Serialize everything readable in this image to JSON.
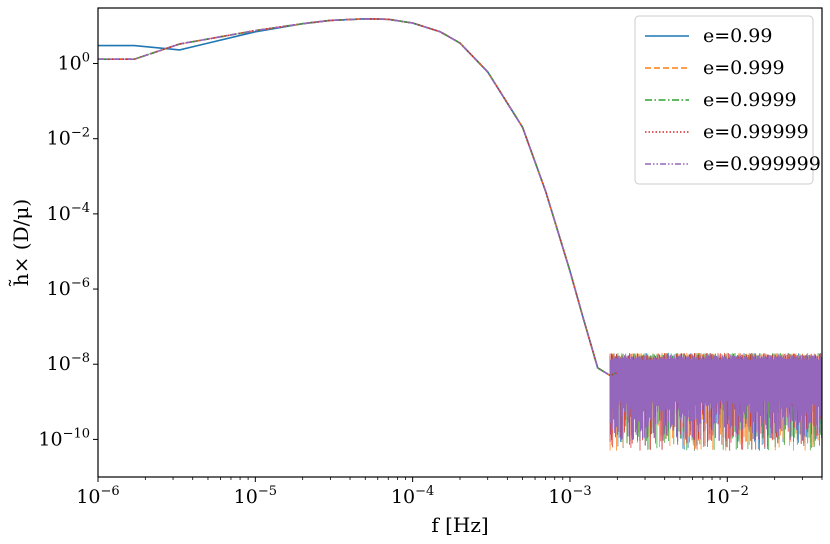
{
  "chart_data": {
    "type": "line",
    "title": "",
    "xlabel": "f [Hz]",
    "ylabel": "h̃× (D/μ)",
    "xscale": "log",
    "yscale": "log",
    "xlim": [
      1e-06,
      0.04
    ],
    "ylim": [
      1e-11,
      30
    ],
    "grid": false,
    "legend_position": "top-right",
    "x_ticks": [
      {
        "value": 1e-06,
        "base": "10",
        "exp": "−6"
      },
      {
        "value": 1e-05,
        "base": "10",
        "exp": "−5"
      },
      {
        "value": 0.0001,
        "base": "10",
        "exp": "−4"
      },
      {
        "value": 0.001,
        "base": "10",
        "exp": "−3"
      },
      {
        "value": 0.01,
        "base": "10",
        "exp": "−2"
      }
    ],
    "y_ticks": [
      {
        "value": 1,
        "base": "10",
        "exp": "0"
      },
      {
        "value": 0.01,
        "base": "10",
        "exp": "−2"
      },
      {
        "value": 0.0001,
        "base": "10",
        "exp": "−4"
      },
      {
        "value": 1e-06,
        "base": "10",
        "exp": "−6"
      },
      {
        "value": 1e-08,
        "base": "10",
        "exp": "−8"
      },
      {
        "value": 1e-10,
        "base": "10",
        "exp": "−10"
      }
    ],
    "noise_floor": {
      "x_start": 0.0018,
      "x_end": 0.04,
      "y_high": 2e-08,
      "y_low": 5e-11
    },
    "series": [
      {
        "name": "e=0.99",
        "color": "#1f77b4",
        "dash": "solid",
        "points": [
          [
            1e-06,
            3
          ],
          [
            1.7e-06,
            3
          ],
          [
            3.3e-06,
            2.3
          ],
          [
            5e-06,
            3.5
          ],
          [
            1e-05,
            7
          ],
          [
            2e-05,
            11.5
          ],
          [
            3e-05,
            14
          ],
          [
            5e-05,
            15.5
          ],
          [
            7e-05,
            15
          ],
          [
            0.0001,
            12
          ],
          [
            0.00015,
            7
          ],
          [
            0.0002,
            3.5
          ],
          [
            0.0003,
            0.6
          ],
          [
            0.0005,
            0.02
          ],
          [
            0.0007,
            0.0004
          ],
          [
            0.001,
            3e-06
          ],
          [
            0.0012,
            2e-07
          ],
          [
            0.0015,
            8e-09
          ],
          [
            0.0018,
            5e-09
          ],
          [
            0.002,
            6e-09
          ]
        ]
      },
      {
        "name": "e=0.999",
        "color": "#ff7f0e",
        "dash": "dashed",
        "points": [
          [
            1e-06,
            1.3
          ],
          [
            1.7e-06,
            1.3
          ],
          [
            3.3e-06,
            3.3
          ],
          [
            5e-06,
            4.5
          ],
          [
            1e-05,
            7.5
          ],
          [
            2e-05,
            11.5
          ],
          [
            3e-05,
            14
          ],
          [
            5e-05,
            15.5
          ],
          [
            7e-05,
            15
          ],
          [
            0.0001,
            12
          ],
          [
            0.00015,
            7
          ],
          [
            0.0002,
            3.5
          ],
          [
            0.0003,
            0.6
          ],
          [
            0.0005,
            0.02
          ],
          [
            0.0007,
            0.0004
          ],
          [
            0.001,
            3e-06
          ],
          [
            0.0012,
            2e-07
          ],
          [
            0.0015,
            8e-09
          ],
          [
            0.0018,
            5e-09
          ],
          [
            0.002,
            6e-09
          ]
        ]
      },
      {
        "name": "e=0.9999",
        "color": "#2ca02c",
        "dash": "dashdot",
        "points": [
          [
            1e-06,
            1.3
          ],
          [
            1.7e-06,
            1.3
          ],
          [
            3.3e-06,
            3.3
          ],
          [
            5e-06,
            4.5
          ],
          [
            1e-05,
            7.5
          ],
          [
            2e-05,
            11.5
          ],
          [
            3e-05,
            14
          ],
          [
            5e-05,
            15.5
          ],
          [
            7e-05,
            15
          ],
          [
            0.0001,
            12
          ],
          [
            0.00015,
            7
          ],
          [
            0.0002,
            3.5
          ],
          [
            0.0003,
            0.6
          ],
          [
            0.0005,
            0.02
          ],
          [
            0.0007,
            0.0004
          ],
          [
            0.001,
            3e-06
          ],
          [
            0.0012,
            2e-07
          ],
          [
            0.0015,
            8e-09
          ],
          [
            0.0018,
            5e-09
          ],
          [
            0.002,
            6e-09
          ]
        ]
      },
      {
        "name": "e=0.99999",
        "color": "#d62728",
        "dash": "dotted",
        "points": [
          [
            1e-06,
            1.3
          ],
          [
            1.7e-06,
            1.3
          ],
          [
            3.3e-06,
            3.3
          ],
          [
            5e-06,
            4.5
          ],
          [
            1e-05,
            7.5
          ],
          [
            2e-05,
            11.5
          ],
          [
            3e-05,
            14
          ],
          [
            5e-05,
            15.5
          ],
          [
            7e-05,
            15
          ],
          [
            0.0001,
            12
          ],
          [
            0.00015,
            7
          ],
          [
            0.0002,
            3.5
          ],
          [
            0.0003,
            0.6
          ],
          [
            0.0005,
            0.02
          ],
          [
            0.0007,
            0.0004
          ],
          [
            0.001,
            3e-06
          ],
          [
            0.0012,
            2e-07
          ],
          [
            0.0015,
            8e-09
          ],
          [
            0.0018,
            5e-09
          ],
          [
            0.002,
            6e-09
          ]
        ]
      },
      {
        "name": "e=0.999999",
        "color": "#9467bd",
        "dash": "dashdotdot",
        "points": [
          [
            1e-06,
            1.3
          ],
          [
            1.7e-06,
            1.3
          ],
          [
            3.3e-06,
            3.3
          ],
          [
            5e-06,
            4.5
          ],
          [
            1e-05,
            7.5
          ],
          [
            2e-05,
            11.5
          ],
          [
            3e-05,
            14
          ],
          [
            5e-05,
            15.5
          ],
          [
            7e-05,
            15
          ],
          [
            0.0001,
            12
          ],
          [
            0.00015,
            7
          ],
          [
            0.0002,
            3.5
          ],
          [
            0.0003,
            0.6
          ],
          [
            0.0005,
            0.02
          ],
          [
            0.0007,
            0.0004
          ],
          [
            0.001,
            3e-06
          ],
          [
            0.0012,
            2e-07
          ],
          [
            0.0015,
            8e-09
          ],
          [
            0.0018,
            5e-09
          ],
          [
            0.002,
            6e-09
          ]
        ]
      }
    ]
  }
}
